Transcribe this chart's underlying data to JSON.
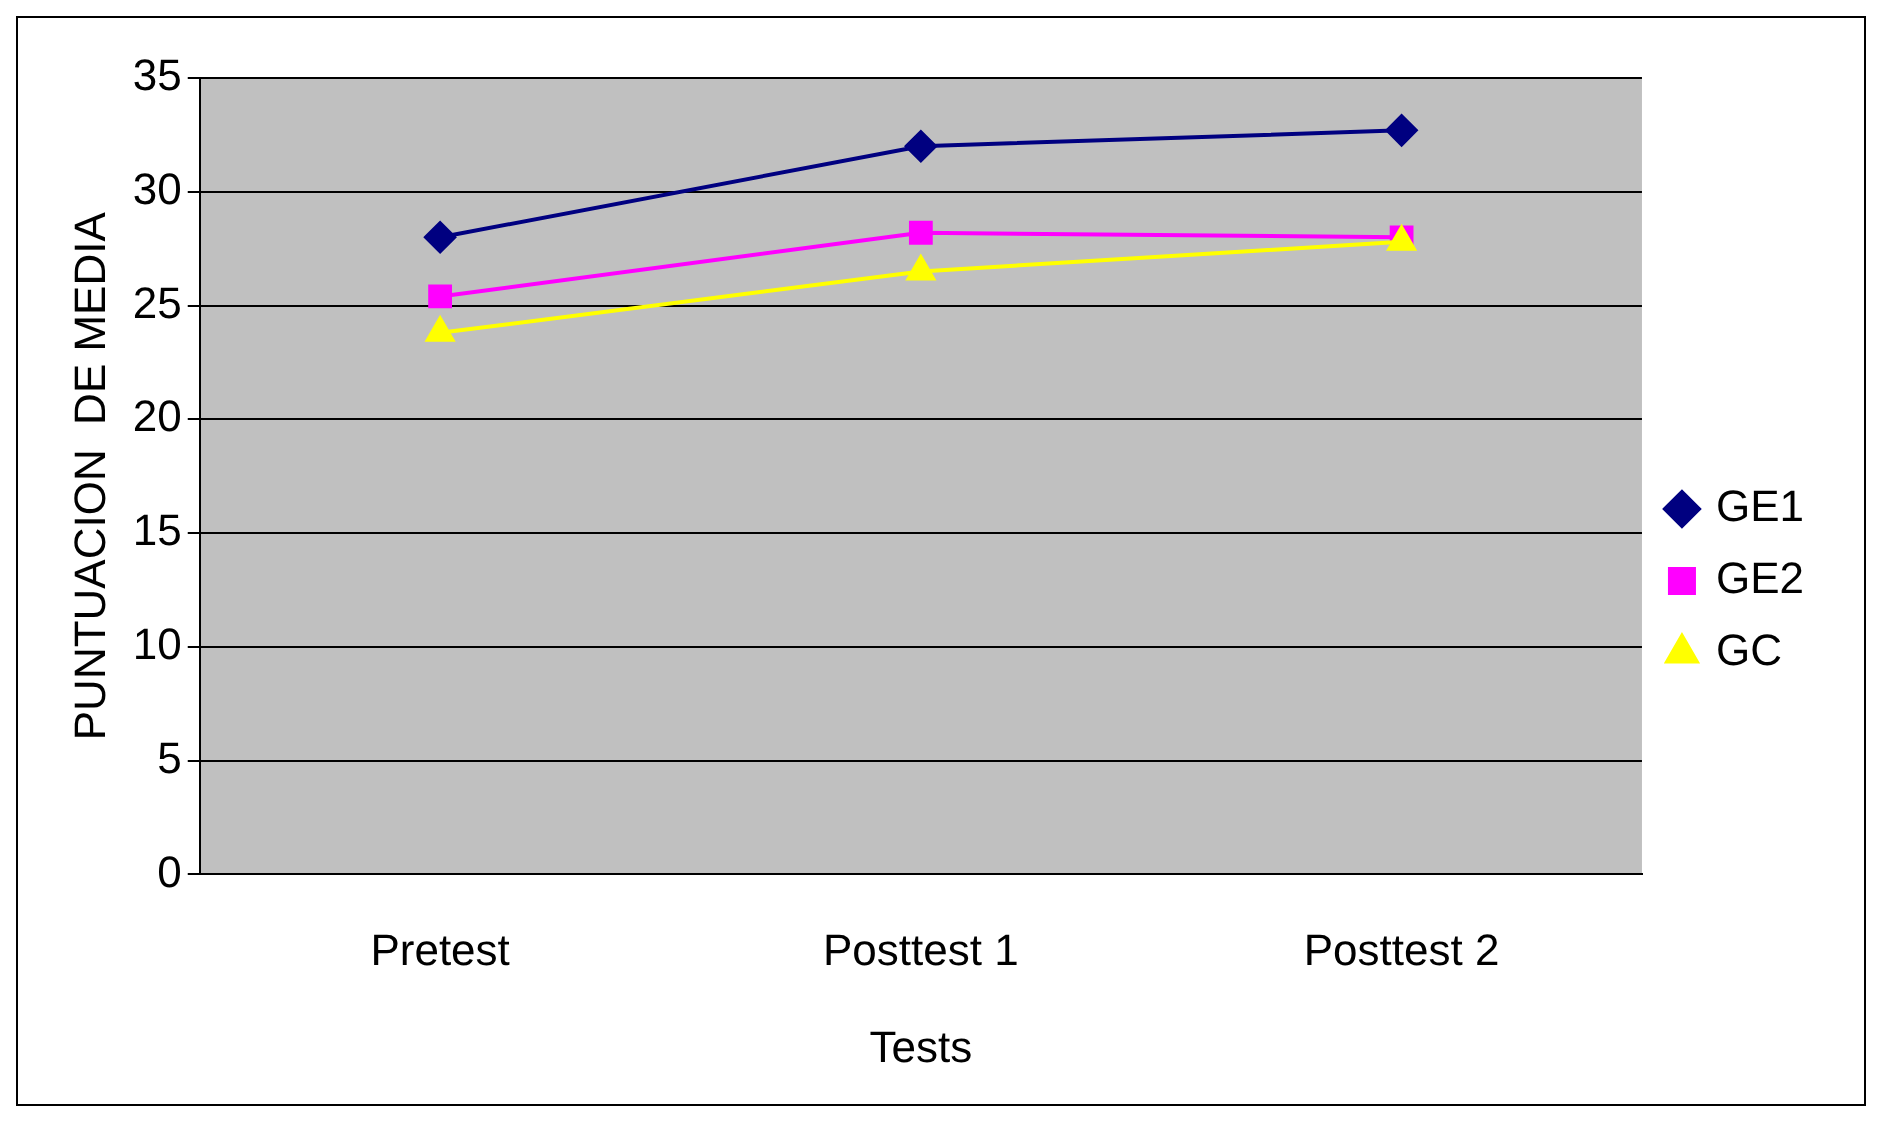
{
  "chart_data": {
    "type": "line",
    "xlabel": "Tests",
    "ylabel": "PUNTUACION  DE MEDIA",
    "categories": [
      "Pretest",
      "Posttest 1",
      "Posttest 2"
    ],
    "series": [
      {
        "name": "GE1",
        "color": "#000080",
        "marker": "diamond",
        "values": [
          28,
          32,
          32.7
        ]
      },
      {
        "name": "GE2",
        "color": "#ff00ff",
        "marker": "square",
        "values": [
          25.4,
          28.2,
          28
        ]
      },
      {
        "name": "GC",
        "color": "#ffff00",
        "marker": "triangle",
        "values": [
          23.8,
          26.5,
          27.8
        ]
      }
    ],
    "ylim": [
      0,
      35
    ],
    "yticks": [
      0,
      5,
      10,
      15,
      20,
      25,
      30,
      35
    ],
    "grid": "y",
    "legend": "right",
    "line_style": "solid"
  }
}
